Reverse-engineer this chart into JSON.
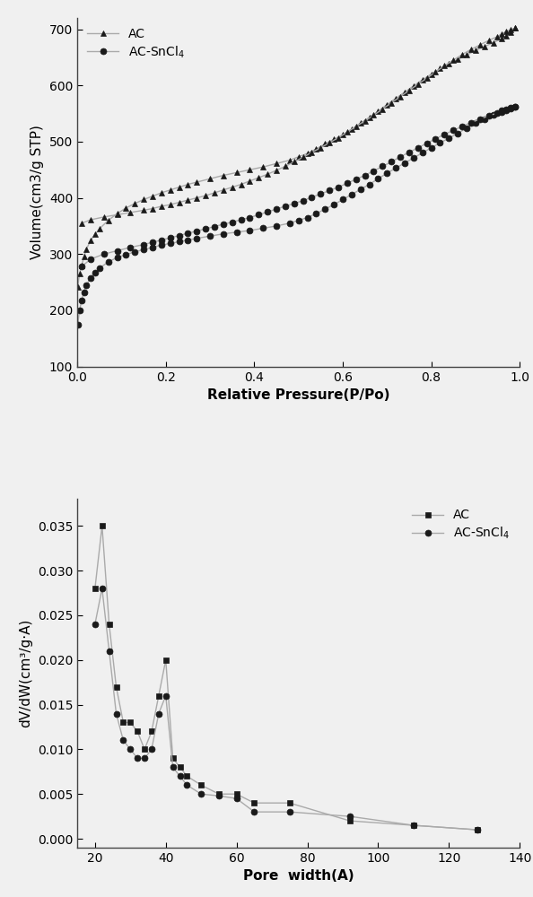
{
  "plot1": {
    "xlabel": "Relative Pressure(P/Po)",
    "ylabel": "Volume(cm3/g STP)",
    "xlim": [
      0.0,
      1.0
    ],
    "ylim": [
      100,
      720
    ],
    "yticks": [
      100,
      200,
      300,
      400,
      500,
      600,
      700
    ],
    "xticks": [
      0.0,
      0.2,
      0.4,
      0.6,
      0.8,
      1.0
    ],
    "AC_adsorption_x": [
      0.001,
      0.005,
      0.01,
      0.015,
      0.02,
      0.03,
      0.04,
      0.05,
      0.07,
      0.09,
      0.11,
      0.13,
      0.15,
      0.17,
      0.19,
      0.21,
      0.23,
      0.25,
      0.27,
      0.3,
      0.33,
      0.36,
      0.39,
      0.42,
      0.45,
      0.48,
      0.5,
      0.52,
      0.54,
      0.56,
      0.58,
      0.6,
      0.62,
      0.64,
      0.66,
      0.68,
      0.7,
      0.72,
      0.74,
      0.76,
      0.78,
      0.8,
      0.82,
      0.84,
      0.86,
      0.88,
      0.9,
      0.92,
      0.94,
      0.96,
      0.97,
      0.98,
      0.99
    ],
    "AC_adsorption_y": [
      242,
      265,
      280,
      295,
      308,
      324,
      335,
      345,
      360,
      372,
      382,
      390,
      397,
      403,
      409,
      414,
      419,
      424,
      428,
      434,
      440,
      445,
      450,
      455,
      461,
      467,
      473,
      479,
      487,
      496,
      504,
      512,
      522,
      533,
      543,
      554,
      566,
      577,
      588,
      599,
      610,
      620,
      630,
      638,
      646,
      654,
      662,
      669,
      676,
      683,
      688,
      695,
      702
    ],
    "AC_desorption_x": [
      0.99,
      0.98,
      0.97,
      0.96,
      0.95,
      0.93,
      0.91,
      0.89,
      0.87,
      0.85,
      0.83,
      0.81,
      0.79,
      0.77,
      0.75,
      0.73,
      0.71,
      0.69,
      0.67,
      0.65,
      0.63,
      0.61,
      0.59,
      0.57,
      0.55,
      0.53,
      0.51,
      0.49,
      0.47,
      0.45,
      0.43,
      0.41,
      0.39,
      0.37,
      0.35,
      0.33,
      0.31,
      0.29,
      0.27,
      0.25,
      0.23,
      0.21,
      0.19,
      0.17,
      0.15,
      0.12,
      0.09,
      0.06,
      0.03,
      0.01
    ],
    "AC_desorption_y": [
      702,
      699,
      696,
      692,
      687,
      680,
      672,
      664,
      655,
      645,
      635,
      624,
      613,
      602,
      591,
      580,
      569,
      558,
      547,
      537,
      527,
      517,
      507,
      498,
      489,
      481,
      472,
      464,
      456,
      449,
      442,
      436,
      430,
      424,
      419,
      414,
      409,
      404,
      400,
      396,
      392,
      388,
      385,
      381,
      378,
      374,
      370,
      366,
      361,
      355
    ],
    "SnCl4_adsorption_x": [
      0.001,
      0.005,
      0.01,
      0.015,
      0.02,
      0.03,
      0.04,
      0.05,
      0.07,
      0.09,
      0.11,
      0.13,
      0.15,
      0.17,
      0.19,
      0.21,
      0.23,
      0.25,
      0.27,
      0.3,
      0.33,
      0.36,
      0.39,
      0.42,
      0.45,
      0.48,
      0.5,
      0.52,
      0.54,
      0.56,
      0.58,
      0.6,
      0.62,
      0.64,
      0.66,
      0.68,
      0.7,
      0.72,
      0.74,
      0.76,
      0.78,
      0.8,
      0.82,
      0.84,
      0.86,
      0.88,
      0.9,
      0.92,
      0.94,
      0.96,
      0.97,
      0.98,
      0.99
    ],
    "SnCl4_adsorption_y": [
      175,
      200,
      218,
      232,
      244,
      258,
      267,
      275,
      286,
      294,
      299,
      304,
      308,
      312,
      316,
      319,
      322,
      325,
      328,
      332,
      336,
      339,
      342,
      346,
      350,
      355,
      360,
      365,
      372,
      380,
      388,
      397,
      406,
      415,
      424,
      434,
      444,
      453,
      462,
      471,
      480,
      489,
      498,
      506,
      515,
      524,
      533,
      540,
      547,
      553,
      556,
      559,
      562
    ],
    "SnCl4_desorption_x": [
      0.99,
      0.98,
      0.97,
      0.96,
      0.95,
      0.93,
      0.91,
      0.89,
      0.87,
      0.85,
      0.83,
      0.81,
      0.79,
      0.77,
      0.75,
      0.73,
      0.71,
      0.69,
      0.67,
      0.65,
      0.63,
      0.61,
      0.59,
      0.57,
      0.55,
      0.53,
      0.51,
      0.49,
      0.47,
      0.45,
      0.43,
      0.41,
      0.39,
      0.37,
      0.35,
      0.33,
      0.31,
      0.29,
      0.27,
      0.25,
      0.23,
      0.21,
      0.19,
      0.17,
      0.15,
      0.12,
      0.09,
      0.06,
      0.03,
      0.01
    ],
    "SnCl4_desorption_y": [
      562,
      560,
      558,
      555,
      551,
      546,
      540,
      534,
      527,
      520,
      513,
      505,
      497,
      489,
      481,
      473,
      464,
      456,
      448,
      440,
      433,
      426,
      419,
      413,
      407,
      401,
      395,
      390,
      385,
      380,
      375,
      370,
      365,
      361,
      357,
      353,
      349,
      345,
      341,
      337,
      333,
      329,
      325,
      321,
      317,
      312,
      306,
      300,
      291,
      278
    ]
  },
  "plot2": {
    "xlabel": "Pore  width(A)",
    "ylabel": "dV/dW(cm³/g·A)",
    "xlim": [
      15,
      140
    ],
    "ylim": [
      -0.001,
      0.038
    ],
    "yticks": [
      0.0,
      0.005,
      0.01,
      0.015,
      0.02,
      0.025,
      0.03,
      0.035
    ],
    "xticks": [
      20,
      40,
      60,
      80,
      100,
      120,
      140
    ],
    "AC_x": [
      20,
      22,
      24,
      26,
      28,
      30,
      32,
      34,
      36,
      38,
      40,
      42,
      44,
      46,
      50,
      55,
      60,
      65,
      75,
      92,
      110,
      128
    ],
    "AC_y": [
      0.028,
      0.035,
      0.024,
      0.017,
      0.013,
      0.013,
      0.012,
      0.01,
      0.012,
      0.016,
      0.02,
      0.009,
      0.008,
      0.007,
      0.006,
      0.005,
      0.005,
      0.004,
      0.004,
      0.002,
      0.0015,
      0.001
    ],
    "SnCl4_x": [
      20,
      22,
      24,
      26,
      28,
      30,
      32,
      34,
      36,
      38,
      40,
      42,
      44,
      46,
      50,
      55,
      60,
      65,
      75,
      92,
      110,
      128
    ],
    "SnCl4_y": [
      0.024,
      0.028,
      0.021,
      0.014,
      0.011,
      0.01,
      0.009,
      0.009,
      0.01,
      0.014,
      0.016,
      0.008,
      0.007,
      0.006,
      0.005,
      0.0048,
      0.0045,
      0.003,
      0.003,
      0.0025,
      0.0015,
      0.001
    ]
  },
  "line_color": "#aaaaaa",
  "marker_color": "#1a1a1a",
  "bg_color": "#f0f0f0",
  "legend_fontsize": 10,
  "axis_fontsize": 11,
  "tick_fontsize": 10
}
